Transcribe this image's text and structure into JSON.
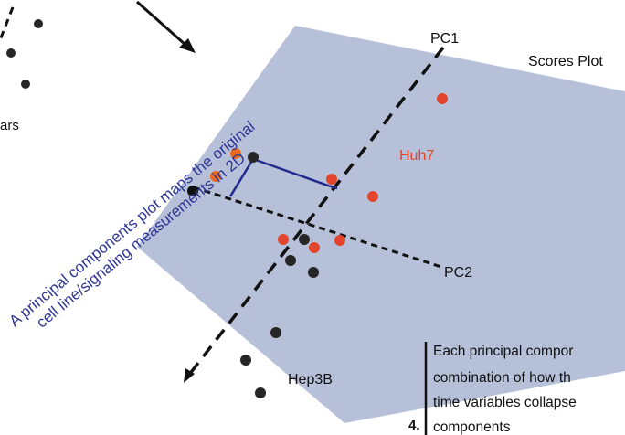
{
  "diagram": {
    "title": "Scores Plot",
    "axis_pc1": "PC1",
    "axis_pc2": "PC2",
    "left_partial_label": "ars",
    "group_huh7": "Huh7",
    "group_hep3b": "Hep3B",
    "diagonal_caption_line1": "A principal components plot maps the original",
    "diagonal_caption_line2": "cell line/signaling measurements in 2D",
    "step_number": "4.",
    "side_text": [
      "Each principal compor",
      "combination of how th",
      "time variables collapse",
      "components"
    ]
  },
  "colors": {
    "plane": "#b7c0d9",
    "huh7": "#e2452e",
    "hep3b": "#262626",
    "caption": "#2e3596",
    "projection": "#1f2a8c"
  }
}
